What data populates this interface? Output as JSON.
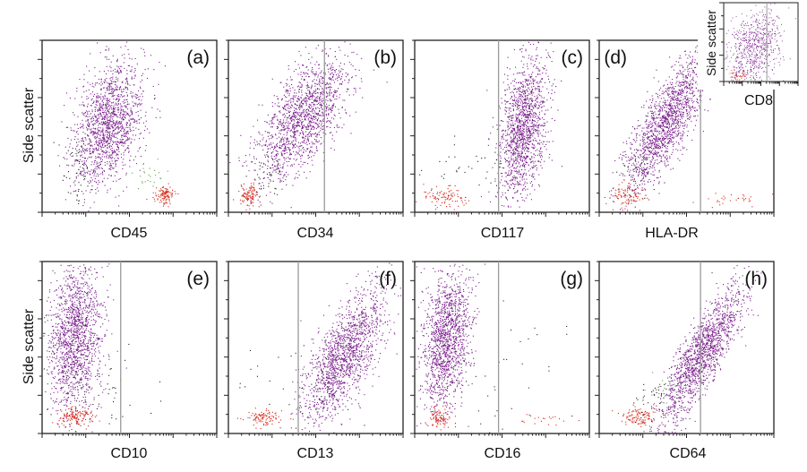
{
  "figure": {
    "y_label": "Side scatter",
    "point_colors": {
      "blast": "#7a1f8c",
      "lymph": "#d62a1a",
      "other": "#222222",
      "green": "#5aa24a",
      "gate_line": "#9a9a9a"
    }
  },
  "chart_data": [
    {
      "type": "scatter",
      "panel": "(a)",
      "xlabel": "CD45",
      "ylabel": "Side scatter",
      "x_scale": "log",
      "gate": null,
      "populations": [
        {
          "color": "blast",
          "center": [
            0.38,
            0.52
          ],
          "spread": [
            0.1,
            0.18
          ],
          "tilt": 0.35,
          "count": 1500
        },
        {
          "color": "lymph",
          "center": [
            0.7,
            0.1
          ],
          "spread": [
            0.025,
            0.025
          ],
          "tilt": 0,
          "count": 110
        },
        {
          "color": "other",
          "center": [
            0.2,
            0.25
          ],
          "spread": [
            0.05,
            0.1
          ],
          "tilt": 0,
          "count": 60
        },
        {
          "color": "green",
          "center": [
            0.6,
            0.22
          ],
          "spread": [
            0.05,
            0.05
          ],
          "tilt": 0,
          "count": 25
        }
      ]
    },
    {
      "type": "scatter",
      "panel": "(b)",
      "xlabel": "CD34",
      "ylabel": "",
      "x_scale": "log",
      "gate": 0.55,
      "populations": [
        {
          "color": "blast",
          "center": [
            0.42,
            0.55
          ],
          "spread": [
            0.13,
            0.18
          ],
          "tilt": 0.6,
          "count": 1500
        },
        {
          "color": "lymph",
          "center": [
            0.12,
            0.1
          ],
          "spread": [
            0.025,
            0.03
          ],
          "tilt": 0,
          "count": 100
        },
        {
          "color": "other",
          "center": [
            0.22,
            0.2
          ],
          "spread": [
            0.05,
            0.05
          ],
          "tilt": 0,
          "count": 40
        }
      ]
    },
    {
      "type": "scatter",
      "panel": "(c)",
      "xlabel": "CD117",
      "ylabel": "",
      "x_scale": "log",
      "gate": 0.48,
      "populations": [
        {
          "color": "blast",
          "center": [
            0.62,
            0.5
          ],
          "spread": [
            0.07,
            0.2
          ],
          "tilt": 0.4,
          "count": 1400
        },
        {
          "color": "lymph",
          "center": [
            0.18,
            0.09
          ],
          "spread": [
            0.07,
            0.03
          ],
          "tilt": 0,
          "count": 90
        },
        {
          "color": "other",
          "center": [
            0.35,
            0.22
          ],
          "spread": [
            0.15,
            0.1
          ],
          "tilt": 0,
          "count": 50
        }
      ]
    },
    {
      "type": "scatter",
      "panel": "(d)",
      "xlabel": "HLA-DR",
      "ylabel": "",
      "x_scale": "log",
      "gate": 0.58,
      "populations": [
        {
          "color": "blast",
          "center": [
            0.38,
            0.52
          ],
          "spread": [
            0.12,
            0.2
          ],
          "tilt": 0.8,
          "count": 1500
        },
        {
          "color": "lymph",
          "center": [
            0.15,
            0.1
          ],
          "spread": [
            0.05,
            0.03
          ],
          "tilt": 0,
          "count": 90
        },
        {
          "color": "lymph",
          "center": [
            0.78,
            0.08
          ],
          "spread": [
            0.1,
            0.02
          ],
          "tilt": 0,
          "count": 30
        },
        {
          "color": "other",
          "center": [
            0.25,
            0.22
          ],
          "spread": [
            0.08,
            0.08
          ],
          "tilt": 0,
          "count": 40
        }
      ]
    },
    {
      "type": "scatter",
      "panel": "inset",
      "xlabel": "CD8",
      "ylabel": "Side scatter",
      "x_scale": "log",
      "gate": 0.58,
      "populations": [
        {
          "color": "blast",
          "center": [
            0.4,
            0.45
          ],
          "spread": [
            0.18,
            0.22
          ],
          "tilt": 0.3,
          "count": 700
        },
        {
          "color": "lymph",
          "center": [
            0.2,
            0.08
          ],
          "spread": [
            0.06,
            0.03
          ],
          "tilt": 0,
          "count": 40
        }
      ]
    },
    {
      "type": "scatter",
      "panel": "(e)",
      "xlabel": "CD10",
      "ylabel": "Side scatter",
      "x_scale": "log",
      "gate": 0.45,
      "populations": [
        {
          "color": "blast",
          "center": [
            0.18,
            0.55
          ],
          "spread": [
            0.08,
            0.22
          ],
          "tilt": 0.2,
          "count": 1500
        },
        {
          "color": "lymph",
          "center": [
            0.18,
            0.1
          ],
          "spread": [
            0.05,
            0.03
          ],
          "tilt": 0,
          "count": 130
        },
        {
          "color": "other",
          "center": [
            0.3,
            0.25
          ],
          "spread": [
            0.15,
            0.15
          ],
          "tilt": 0,
          "count": 60
        }
      ]
    },
    {
      "type": "scatter",
      "panel": "(f)",
      "xlabel": "CD13",
      "ylabel": "",
      "x_scale": "log",
      "gate": 0.4,
      "populations": [
        {
          "color": "blast",
          "center": [
            0.66,
            0.45
          ],
          "spread": [
            0.12,
            0.2
          ],
          "tilt": 0.7,
          "count": 1500
        },
        {
          "color": "lymph",
          "center": [
            0.2,
            0.09
          ],
          "spread": [
            0.06,
            0.025
          ],
          "tilt": 0,
          "count": 100
        },
        {
          "color": "other",
          "center": [
            0.4,
            0.25
          ],
          "spread": [
            0.18,
            0.12
          ],
          "tilt": 0,
          "count": 50
        }
      ]
    },
    {
      "type": "scatter",
      "panel": "(g)",
      "xlabel": "CD16",
      "ylabel": "",
      "x_scale": "log",
      "gate": 0.48,
      "populations": [
        {
          "color": "blast",
          "center": [
            0.18,
            0.55
          ],
          "spread": [
            0.07,
            0.2
          ],
          "tilt": 0.3,
          "count": 1400
        },
        {
          "color": "lymph",
          "center": [
            0.14,
            0.1
          ],
          "spread": [
            0.03,
            0.03
          ],
          "tilt": 0,
          "count": 90
        },
        {
          "color": "lymph",
          "center": [
            0.72,
            0.08
          ],
          "spread": [
            0.1,
            0.02
          ],
          "tilt": 0,
          "count": 20
        },
        {
          "color": "other",
          "center": [
            0.4,
            0.3
          ],
          "spread": [
            0.25,
            0.25
          ],
          "tilt": 0,
          "count": 50
        }
      ]
    },
    {
      "type": "scatter",
      "panel": "(h)",
      "xlabel": "CD64",
      "ylabel": "",
      "x_scale": "log",
      "gate": 0.58,
      "populations": [
        {
          "color": "blast",
          "center": [
            0.58,
            0.45
          ],
          "spread": [
            0.12,
            0.2
          ],
          "tilt": 0.85,
          "count": 1500
        },
        {
          "color": "lymph",
          "center": [
            0.22,
            0.1
          ],
          "spread": [
            0.06,
            0.03
          ],
          "tilt": 0,
          "count": 110
        },
        {
          "color": "other",
          "center": [
            0.3,
            0.18
          ],
          "spread": [
            0.08,
            0.08
          ],
          "tilt": 0,
          "count": 40
        },
        {
          "color": "green",
          "center": [
            0.35,
            0.25
          ],
          "spread": [
            0.05,
            0.05
          ],
          "tilt": 0,
          "count": 20
        }
      ]
    }
  ]
}
